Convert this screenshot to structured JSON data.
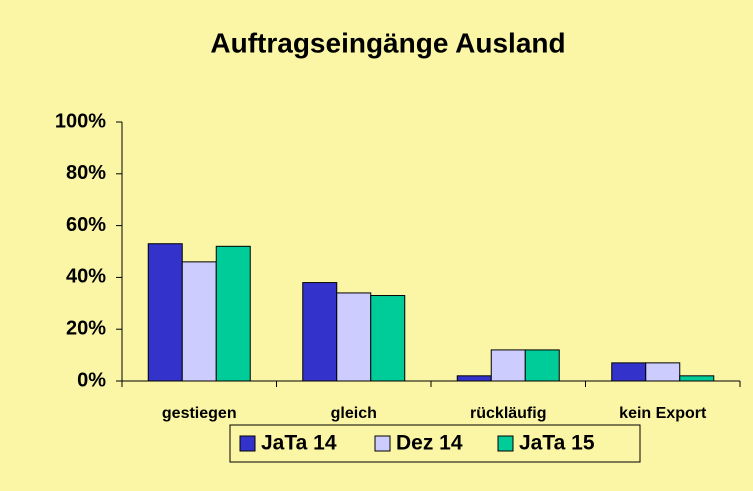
{
  "chart_data": {
    "type": "bar",
    "title": "Auftragseingänge Ausland",
    "categories": [
      "gestiegen",
      "gleich",
      "rückläufig",
      "kein Export"
    ],
    "series": [
      {
        "name": "JaTa 14",
        "color": "#3333cc",
        "values": [
          53,
          38,
          2,
          7
        ]
      },
      {
        "name": "Dez 14",
        "color": "#ccccff",
        "values": [
          46,
          34,
          12,
          7
        ]
      },
      {
        "name": "JaTa 15",
        "color": "#00cc99",
        "values": [
          52,
          33,
          12,
          2
        ]
      }
    ],
    "ylim": [
      0,
      100
    ],
    "yticks": [
      {
        "value": 0,
        "label": "0%"
      },
      {
        "value": 20,
        "label": "20%"
      },
      {
        "value": 40,
        "label": "40%"
      },
      {
        "value": 60,
        "label": "60%"
      },
      {
        "value": 80,
        "label": "80%"
      },
      {
        "value": 100,
        "label": "100%"
      }
    ],
    "grid": false,
    "legend": "bottom"
  }
}
